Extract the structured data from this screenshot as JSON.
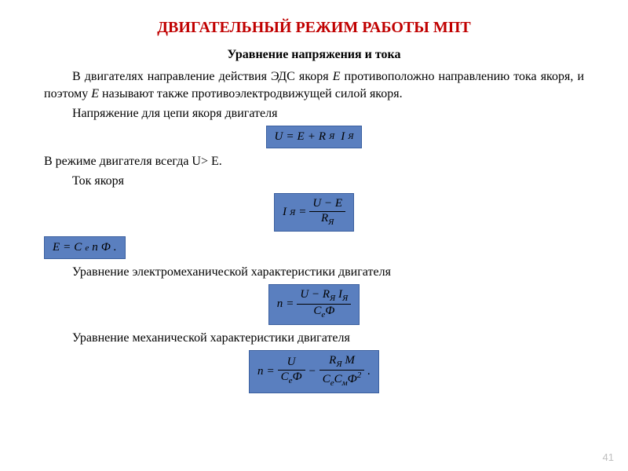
{
  "title": "ДВИГАТЕЛЬНЫЙ РЕЖИМ РАБОТЫ МПТ",
  "subtitle": "Уравнение напряжения и тока",
  "para1_a": "В двигателях направление действия ЭДС якоря ",
  "para1_E": "Е",
  "para1_b": " противоположно направлению тока якоря, и поэтому ",
  "para1_E2": "Е",
  "para1_c": " называют также противоэлектродвижущей силой якоря.",
  "para2": "Напряжение для цепи якоря двигателя",
  "para3": "В режиме двигателя всегда U> Е.",
  "para4": "Ток  якоря",
  "para5": "Уравнение  электромеханической характеристики  двигателя",
  "para6": "Уравнение  механической характеристики  двигателя",
  "page_number": "41",
  "formula_bg": "#5a7fbf",
  "title_color": "#c00000",
  "f1": {
    "U": "U",
    "eq": " = ",
    "E": "E",
    "plus": " + ",
    "R": "R",
    "Rsub": "Я",
    "sp": " ",
    "I": "I",
    "Isub": "Я"
  },
  "f2": {
    "I": "I",
    "Isub": "Я",
    "eq": " = ",
    "num_U": "U",
    "num_minus": " − ",
    "num_E": "E",
    "den_R": "R",
    "den_Rsub": "Я"
  },
  "f3": {
    "E": "E",
    "eq": " = ",
    "C": "C",
    "Csub": "e",
    "n": "n",
    "Phi": "Ф",
    "dot": "."
  },
  "f4": {
    "n": "n",
    "eq": " = ",
    "num_U": "U",
    "num_minus": " − ",
    "num_R": "R",
    "num_Rsub": "Я",
    "num_sp": " ",
    "num_I": "I",
    "num_Isub": "Я",
    "den_C": "C",
    "den_Csub": "e",
    "den_Phi": "Ф"
  },
  "f5": {
    "n": "n",
    "eq": " = ",
    "t1_num_U": "U",
    "t1_den_C": "C",
    "t1_den_Csub": "e",
    "t1_den_Phi": "Ф",
    "minus": " − ",
    "t2_num_R": "R",
    "t2_num_Rsub": "Я",
    "t2_num_sp": " ",
    "t2_num_M": "M",
    "t2_den_C1": "C",
    "t2_den_C1sub": "e",
    "t2_den_C2": "C",
    "t2_den_C2sub": "м",
    "t2_den_Phi": "Ф",
    "t2_den_sup": "2",
    "dot": "."
  }
}
